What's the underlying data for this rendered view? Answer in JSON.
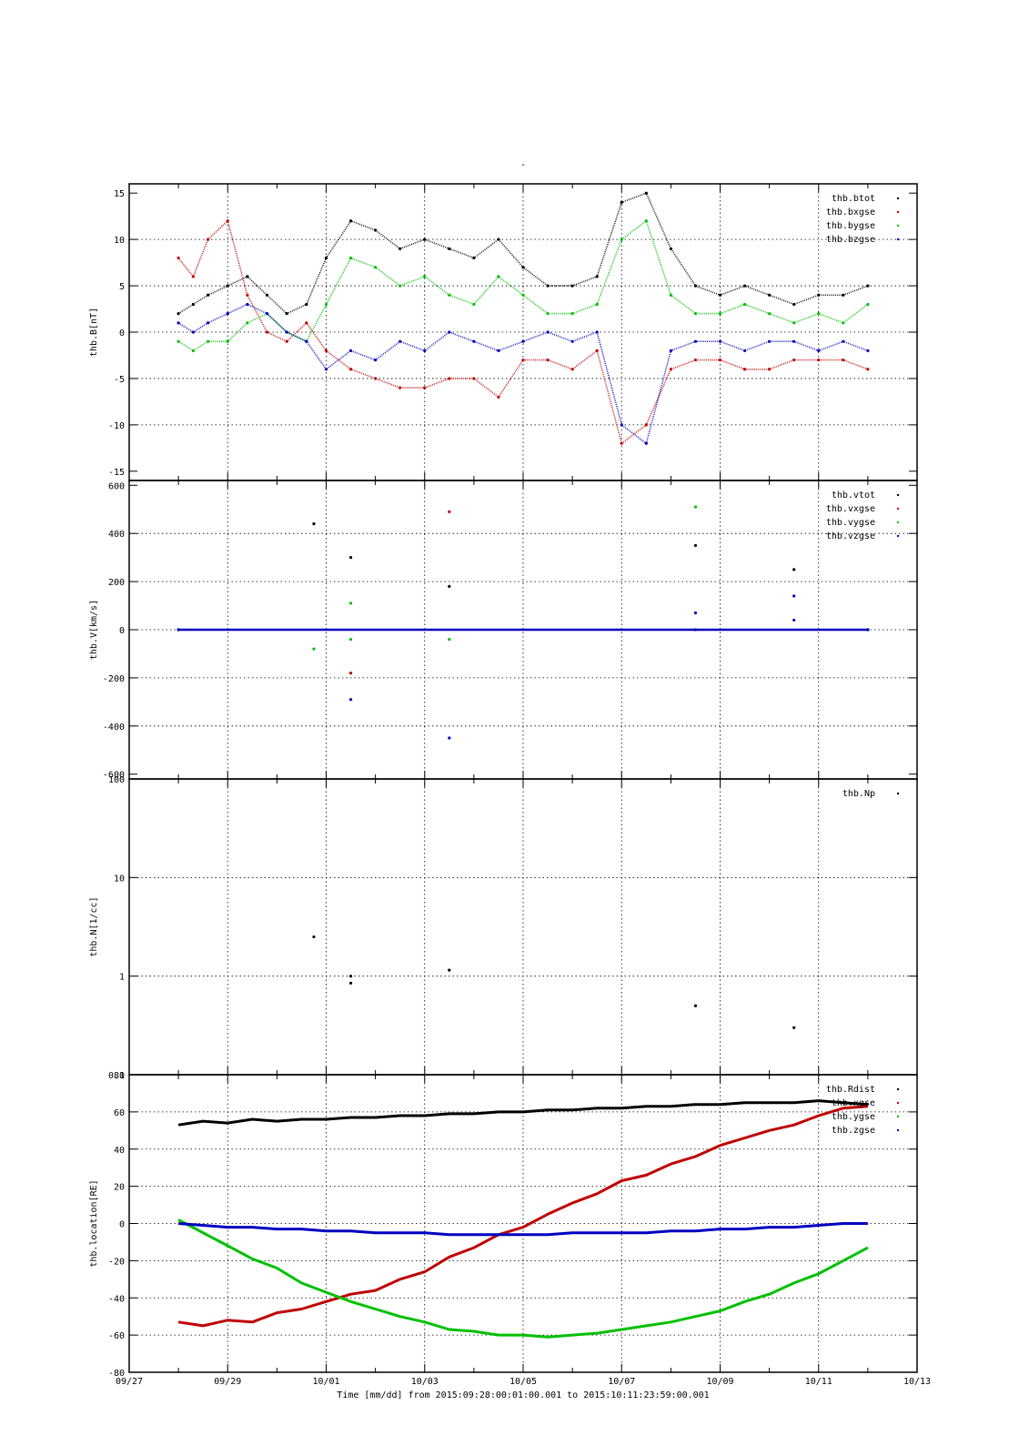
{
  "figure": {
    "title": "-",
    "xlabel": "Time [mm/dd]  from 2015:09:28:00:01:00.001  to  2015:10:11:23:59:00.001",
    "x_tick_labels": [
      "09/27",
      "09/29",
      "10/01",
      "10/03",
      "10/05",
      "10/07",
      "10/09",
      "10/11",
      "10/13"
    ]
  },
  "colors": {
    "black": "#000000",
    "red": "#c00000",
    "green": "#00c000",
    "blue": "#0000c0"
  },
  "chart_data": [
    {
      "type": "scatter",
      "ylabel": "thb.B[nT]",
      "xlim": [
        0,
        16
      ],
      "ylim": [
        -16,
        16
      ],
      "yscale": "linear",
      "y_ticks": [
        -15,
        -10,
        -5,
        0,
        5,
        10,
        15
      ],
      "y_tick_labels": [
        "-15",
        "-10",
        "-5",
        "0",
        "5",
        "10",
        "15"
      ],
      "grid": true,
      "legend_position": "top-right",
      "series": [
        {
          "name": "thb.btot",
          "color": "black",
          "x": [
            1.0,
            1.3,
            1.6,
            2.0,
            2.4,
            2.8,
            3.2,
            3.6,
            4.0,
            4.5,
            5.0,
            5.5,
            6.0,
            6.5,
            7.0,
            7.5,
            8.0,
            8.5,
            9.0,
            9.5,
            10.0,
            10.5,
            11.0,
            11.5,
            12.0,
            12.5,
            13.0,
            13.5,
            14.0,
            14.5,
            15.0
          ],
          "y": [
            2,
            3,
            4,
            5,
            6,
            4,
            2,
            3,
            8,
            12,
            11,
            9,
            10,
            9,
            8,
            10,
            7,
            5,
            5,
            6,
            14,
            15,
            9,
            5,
            4,
            5,
            4,
            3,
            4,
            4,
            5
          ]
        },
        {
          "name": "thb.bxgse",
          "color": "red",
          "x": [
            1.0,
            1.3,
            1.6,
            2.0,
            2.4,
            2.8,
            3.2,
            3.6,
            4.0,
            4.5,
            5.0,
            5.5,
            6.0,
            6.5,
            7.0,
            7.5,
            8.0,
            8.5,
            9.0,
            9.5,
            10.0,
            10.5,
            11.0,
            11.5,
            12.0,
            12.5,
            13.0,
            13.5,
            14.0,
            14.5,
            15.0
          ],
          "y": [
            8,
            6,
            10,
            12,
            4,
            0,
            -1,
            1,
            -2,
            -4,
            -5,
            -6,
            -6,
            -5,
            -5,
            -7,
            -3,
            -3,
            -4,
            -2,
            -12,
            -10,
            -4,
            -3,
            -3,
            -4,
            -4,
            -3,
            -3,
            -3,
            -4
          ]
        },
        {
          "name": "thb.bygse",
          "color": "green",
          "x": [
            1.0,
            1.3,
            1.6,
            2.0,
            2.4,
            2.8,
            3.2,
            3.6,
            4.0,
            4.5,
            5.0,
            5.5,
            6.0,
            6.5,
            7.0,
            7.5,
            8.0,
            8.5,
            9.0,
            9.5,
            10.0,
            10.5,
            11.0,
            11.5,
            12.0,
            12.5,
            13.0,
            13.5,
            14.0,
            14.5,
            15.0
          ],
          "y": [
            -1,
            -2,
            -1,
            -1,
            1,
            2,
            0,
            -1,
            3,
            8,
            7,
            5,
            6,
            4,
            3,
            6,
            4,
            2,
            2,
            3,
            10,
            12,
            4,
            2,
            2,
            3,
            2,
            1,
            2,
            1,
            3
          ]
        },
        {
          "name": "thb.bzgse",
          "color": "blue",
          "x": [
            1.0,
            1.3,
            1.6,
            2.0,
            2.4,
            2.8,
            3.2,
            3.6,
            4.0,
            4.5,
            5.0,
            5.5,
            6.0,
            6.5,
            7.0,
            7.5,
            8.0,
            8.5,
            9.0,
            9.5,
            10.0,
            10.5,
            11.0,
            11.5,
            12.0,
            12.5,
            13.0,
            13.5,
            14.0,
            14.5,
            15.0
          ],
          "y": [
            1,
            0,
            1,
            2,
            3,
            2,
            0,
            -1,
            -4,
            -2,
            -3,
            -1,
            -2,
            0,
            -1,
            -2,
            -1,
            0,
            -1,
            0,
            -10,
            -12,
            -2,
            -1,
            -1,
            -2,
            -1,
            -1,
            -2,
            -1,
            -2
          ]
        }
      ]
    },
    {
      "type": "scatter",
      "ylabel": "thb.V[km/s]",
      "xlim": [
        0,
        16
      ],
      "ylim": [
        -620,
        620
      ],
      "yscale": "linear",
      "y_ticks": [
        -600,
        -400,
        -200,
        0,
        200,
        400,
        600
      ],
      "y_tick_labels": [
        "-600",
        "-400",
        "-200",
        "0",
        "200",
        "400",
        "600"
      ],
      "grid": true,
      "legend_position": "top-right",
      "series": [
        {
          "name": "thb.vtot",
          "color": "black",
          "x": [
            1.0,
            15.0,
            3.75,
            4.5,
            6.5,
            11.5,
            13.5
          ],
          "y": [
            0,
            0,
            440,
            300,
            180,
            350,
            250
          ]
        },
        {
          "name": "thb.vxgse",
          "color": "red",
          "x": [
            1.0,
            15.0,
            4.5,
            6.5,
            11.5
          ],
          "y": [
            0,
            0,
            -180,
            490,
            0
          ]
        },
        {
          "name": "thb.vygse",
          "color": "green",
          "x": [
            1.0,
            15.0,
            3.75,
            4.5,
            4.5,
            6.5,
            11.5
          ],
          "y": [
            0,
            0,
            -80,
            110,
            -40,
            -40,
            510
          ]
        },
        {
          "name": "thb.vzgse",
          "color": "blue",
          "x": [
            1.0,
            15.0,
            4.5,
            6.5,
            11.5,
            13.5,
            13.5
          ],
          "y": [
            0,
            0,
            -290,
            -450,
            70,
            140,
            40
          ]
        }
      ]
    },
    {
      "type": "scatter",
      "ylabel": "thb.N[1/cc]",
      "xlim": [
        0,
        16
      ],
      "ylim": [
        0.1,
        100
      ],
      "yscale": "log",
      "y_ticks": [
        0.1,
        1,
        10,
        100
      ],
      "y_tick_labels": [
        "0.1",
        "1",
        "10",
        "100"
      ],
      "grid": true,
      "legend_position": "top-right",
      "series": [
        {
          "name": "thb.Np",
          "color": "black",
          "x": [
            3.75,
            4.5,
            4.5,
            6.5,
            11.5,
            13.5
          ],
          "y": [
            2.5,
            1.0,
            0.85,
            1.15,
            0.5,
            0.3
          ]
        }
      ]
    },
    {
      "type": "line",
      "ylabel": "thb.location[RE]",
      "xlim": [
        0,
        16
      ],
      "ylim": [
        -80,
        80
      ],
      "yscale": "linear",
      "y_ticks": [
        -80,
        -60,
        -40,
        -20,
        0,
        20,
        40,
        60,
        80
      ],
      "y_tick_labels": [
        "-80",
        "-60",
        "-40",
        "-20",
        "0",
        "20",
        "40",
        "60",
        "80"
      ],
      "grid": true,
      "legend_position": "top-right",
      "series": [
        {
          "name": "thb.Rdist",
          "color": "black",
          "x": [
            1.0,
            1.5,
            2.0,
            2.5,
            3.0,
            3.5,
            4.0,
            4.5,
            5.0,
            5.5,
            6.0,
            6.5,
            7.0,
            7.5,
            8.0,
            8.5,
            9.0,
            9.5,
            10.0,
            10.5,
            11.0,
            11.5,
            12.0,
            12.5,
            13.0,
            13.5,
            14.0,
            14.5,
            15.0
          ],
          "y": [
            53,
            55,
            54,
            56,
            55,
            56,
            56,
            57,
            57,
            58,
            58,
            59,
            59,
            60,
            60,
            61,
            61,
            62,
            62,
            63,
            63,
            64,
            64,
            65,
            65,
            65,
            66,
            65,
            64
          ]
        },
        {
          "name": "thb.xgse",
          "color": "red",
          "x": [
            1.0,
            1.5,
            2.0,
            2.5,
            3.0,
            3.5,
            4.0,
            4.5,
            5.0,
            5.5,
            6.0,
            6.5,
            7.0,
            7.5,
            8.0,
            8.5,
            9.0,
            9.5,
            10.0,
            10.5,
            11.0,
            11.5,
            12.0,
            12.5,
            13.0,
            13.5,
            14.0,
            14.5,
            15.0
          ],
          "y": [
            -53,
            -55,
            -52,
            -53,
            -48,
            -46,
            -42,
            -38,
            -36,
            -30,
            -26,
            -18,
            -13,
            -6,
            -2,
            5,
            11,
            16,
            23,
            26,
            32,
            36,
            42,
            46,
            50,
            53,
            58,
            62,
            63
          ]
        },
        {
          "name": "thb.ygse",
          "color": "green",
          "x": [
            1.0,
            1.5,
            2.0,
            2.5,
            3.0,
            3.5,
            4.0,
            4.5,
            5.0,
            5.5,
            6.0,
            6.5,
            7.0,
            7.5,
            8.0,
            8.5,
            9.0,
            9.5,
            10.0,
            10.5,
            11.0,
            11.5,
            12.0,
            12.5,
            13.0,
            13.5,
            14.0,
            14.5,
            15.0
          ],
          "y": [
            2,
            -5,
            -12,
            -19,
            -24,
            -32,
            -37,
            -42,
            -46,
            -50,
            -53,
            -57,
            -58,
            -60,
            -60,
            -61,
            -60,
            -59,
            -57,
            -55,
            -53,
            -50,
            -47,
            -42,
            -38,
            -32,
            -27,
            -20,
            -13
          ]
        },
        {
          "name": "thb.zgse",
          "color": "blue",
          "x": [
            1.0,
            1.5,
            2.0,
            2.5,
            3.0,
            3.5,
            4.0,
            4.5,
            5.0,
            5.5,
            6.0,
            6.5,
            7.0,
            7.5,
            8.0,
            8.5,
            9.0,
            9.5,
            10.0,
            10.5,
            11.0,
            11.5,
            12.0,
            12.5,
            13.0,
            13.5,
            14.0,
            14.5,
            15.0
          ],
          "y": [
            0,
            -1,
            -2,
            -2,
            -3,
            -3,
            -4,
            -4,
            -5,
            -5,
            -5,
            -6,
            -6,
            -6,
            -6,
            -6,
            -5,
            -5,
            -5,
            -5,
            -4,
            -4,
            -3,
            -3,
            -2,
            -2,
            -1,
            0,
            0
          ]
        }
      ]
    }
  ]
}
